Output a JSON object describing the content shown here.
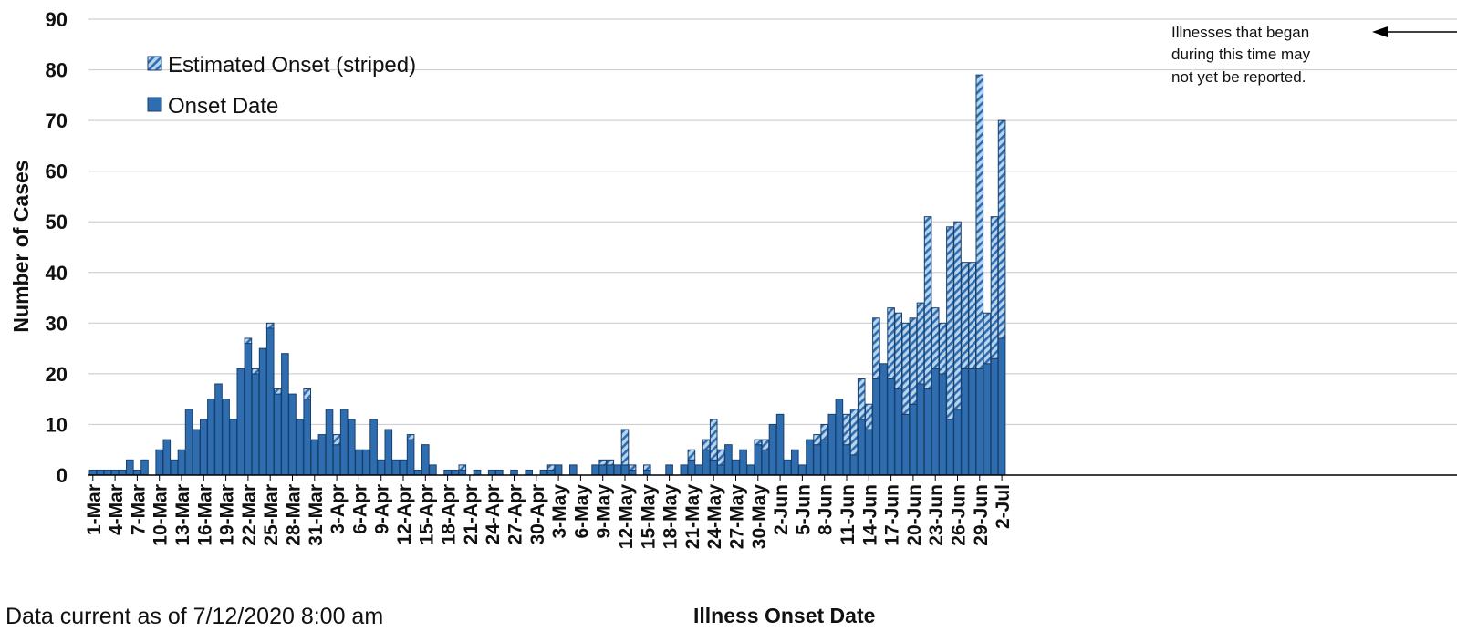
{
  "chart_data": {
    "type": "bar",
    "stacked": true,
    "xlabel": "Illness Onset Date",
    "ylabel": "Number of Cases",
    "ylim": [
      0,
      90
    ],
    "y_ticks": [
      0,
      10,
      20,
      30,
      40,
      50,
      60,
      70,
      80,
      90
    ],
    "grid": "horizontal",
    "legend_position": "top-left",
    "annotation": [
      "Illnesses that began",
      "during this time may",
      "not yet be reported."
    ],
    "colors": {
      "bar": "#2e6db0",
      "stripe": "#b7d4ee",
      "edge": "#1b3f6a",
      "grid": "#d0d0d0",
      "axis": "#000000"
    },
    "categories": [
      "1-Mar",
      "2-Mar",
      "3-Mar",
      "4-Mar",
      "5-Mar",
      "6-Mar",
      "7-Mar",
      "8-Mar",
      "9-Mar",
      "10-Mar",
      "11-Mar",
      "12-Mar",
      "13-Mar",
      "14-Mar",
      "15-Mar",
      "16-Mar",
      "17-Mar",
      "18-Mar",
      "19-Mar",
      "20-Mar",
      "21-Mar",
      "22-Mar",
      "23-Mar",
      "24-Mar",
      "25-Mar",
      "26-Mar",
      "27-Mar",
      "28-Mar",
      "29-Mar",
      "30-Mar",
      "31-Mar",
      "1-Apr",
      "2-Apr",
      "3-Apr",
      "4-Apr",
      "5-Apr",
      "6-Apr",
      "7-Apr",
      "8-Apr",
      "9-Apr",
      "10-Apr",
      "11-Apr",
      "12-Apr",
      "13-Apr",
      "14-Apr",
      "15-Apr",
      "16-Apr",
      "17-Apr",
      "18-Apr",
      "19-Apr",
      "20-Apr",
      "21-Apr",
      "22-Apr",
      "23-Apr",
      "24-Apr",
      "25-Apr",
      "26-Apr",
      "27-Apr",
      "28-Apr",
      "29-Apr",
      "30-Apr",
      "1-May",
      "2-May",
      "3-May",
      "4-May",
      "5-May",
      "6-May",
      "7-May",
      "8-May",
      "9-May",
      "10-May",
      "11-May",
      "12-May",
      "13-May",
      "14-May",
      "15-May",
      "16-May",
      "17-May",
      "18-May",
      "19-May",
      "20-May",
      "21-May",
      "22-May",
      "23-May",
      "24-May",
      "25-May",
      "26-May",
      "27-May",
      "28-May",
      "29-May",
      "30-May",
      "31-May",
      "1-Jun",
      "2-Jun",
      "3-Jun",
      "4-Jun",
      "5-Jun",
      "6-Jun",
      "7-Jun",
      "8-Jun",
      "9-Jun",
      "10-Jun",
      "11-Jun",
      "12-Jun",
      "13-Jun",
      "14-Jun",
      "15-Jun",
      "16-Jun",
      "17-Jun",
      "18-Jun",
      "19-Jun",
      "20-Jun",
      "21-Jun",
      "22-Jun",
      "23-Jun",
      "24-Jun",
      "25-Jun",
      "26-Jun",
      "27-Jun",
      "28-Jun",
      "29-Jun",
      "30-Jun",
      "1-Jul",
      "2-Jul"
    ],
    "tick_labels": [
      "1-Mar",
      "4-Mar",
      "7-Mar",
      "10-Mar",
      "13-Mar",
      "16-Mar",
      "19-Mar",
      "22-Mar",
      "25-Mar",
      "28-Mar",
      "31-Mar",
      "3-Apr",
      "6-Apr",
      "9-Apr",
      "12-Apr",
      "15-Apr",
      "18-Apr",
      "21-Apr",
      "24-Apr",
      "27-Apr",
      "30-Apr",
      "3-May",
      "6-May",
      "9-May",
      "12-May",
      "15-May",
      "18-May",
      "21-May",
      "24-May",
      "27-May",
      "30-May",
      "2-Jun",
      "5-Jun",
      "8-Jun",
      "11-Jun",
      "14-Jun",
      "17-Jun",
      "20-Jun",
      "23-Jun",
      "26-Jun",
      "29-Jun",
      "2-Jul"
    ],
    "series": [
      {
        "name": "Onset Date",
        "pattern": "solid",
        "values": [
          1,
          1,
          1,
          1,
          1,
          3,
          1,
          3,
          0,
          5,
          7,
          3,
          5,
          13,
          9,
          11,
          15,
          18,
          15,
          11,
          21,
          26,
          20,
          25,
          29,
          16,
          24,
          16,
          11,
          15,
          7,
          8,
          13,
          6,
          13,
          11,
          5,
          5,
          11,
          3,
          9,
          3,
          3,
          7,
          1,
          6,
          2,
          0,
          1,
          1,
          1,
          0,
          1,
          0,
          1,
          1,
          0,
          1,
          0,
          1,
          0,
          1,
          1,
          2,
          0,
          2,
          0,
          0,
          2,
          2,
          2,
          2,
          2,
          1,
          0,
          1,
          0,
          0,
          2,
          0,
          2,
          3,
          2,
          5,
          3,
          2,
          6,
          3,
          5,
          2,
          6,
          5,
          10,
          12,
          3,
          5,
          2,
          7,
          6,
          7,
          12,
          15,
          6,
          4,
          11,
          9,
          19,
          22,
          19,
          17,
          12,
          14,
          18,
          17,
          21,
          20,
          11,
          13,
          21,
          21,
          21,
          22,
          23,
          27
        ]
      },
      {
        "name": "Estimated Onset (striped)",
        "pattern": "striped",
        "values": [
          0,
          0,
          0,
          0,
          0,
          0,
          0,
          0,
          0,
          0,
          0,
          0,
          0,
          0,
          0,
          0,
          0,
          0,
          0,
          0,
          0,
          1,
          1,
          0,
          1,
          1,
          0,
          0,
          0,
          2,
          0,
          0,
          0,
          2,
          0,
          0,
          0,
          0,
          0,
          0,
          0,
          0,
          0,
          1,
          0,
          0,
          0,
          0,
          0,
          0,
          1,
          0,
          0,
          0,
          0,
          0,
          0,
          0,
          0,
          0,
          0,
          0,
          1,
          0,
          0,
          0,
          0,
          0,
          0,
          1,
          1,
          0,
          7,
          1,
          0,
          1,
          0,
          0,
          0,
          0,
          0,
          2,
          0,
          2,
          8,
          3,
          0,
          0,
          0,
          0,
          1,
          2,
          0,
          0,
          0,
          0,
          0,
          0,
          2,
          3,
          0,
          0,
          6,
          9,
          8,
          5,
          12,
          0,
          14,
          15,
          18,
          17,
          16,
          34,
          12,
          10,
          38,
          37,
          21,
          21,
          58,
          10,
          28,
          43
        ]
      }
    ]
  }
}
